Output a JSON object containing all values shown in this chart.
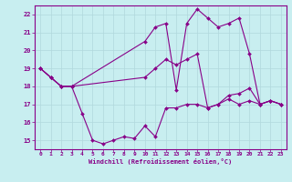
{
  "xlabel": "Windchill (Refroidissement éolien,°C)",
  "bg_color": "#c8eef0",
  "grid_color": "#b0d8dc",
  "line_color": "#880088",
  "spine_color": "#880088",
  "xlim": [
    -0.5,
    23.5
  ],
  "ylim": [
    14.5,
    22.5
  ],
  "xticks": [
    0,
    1,
    2,
    3,
    4,
    5,
    6,
    7,
    8,
    9,
    10,
    11,
    12,
    13,
    14,
    15,
    16,
    17,
    18,
    19,
    20,
    21,
    22,
    23
  ],
  "yticks": [
    15,
    16,
    17,
    18,
    19,
    20,
    21,
    22
  ],
  "line1_x": [
    0,
    1,
    2,
    3,
    10,
    11,
    12,
    13,
    14,
    15,
    16,
    17,
    18,
    19,
    20,
    21,
    22,
    23
  ],
  "line1_y": [
    19.0,
    18.5,
    18.0,
    18.0,
    20.5,
    21.3,
    21.5,
    17.8,
    21.5,
    22.3,
    21.8,
    21.3,
    21.5,
    21.8,
    19.8,
    17.0,
    17.2,
    17.0
  ],
  "line2_x": [
    0,
    1,
    2,
    3,
    4,
    5,
    6,
    7,
    8,
    9,
    10,
    11,
    12,
    13,
    14,
    15,
    16,
    17,
    18,
    19,
    20,
    21,
    22,
    23
  ],
  "line2_y": [
    19.0,
    18.5,
    18.0,
    18.0,
    16.5,
    15.0,
    14.8,
    15.0,
    15.2,
    15.1,
    15.8,
    15.2,
    16.8,
    16.8,
    17.0,
    17.0,
    16.8,
    17.0,
    17.3,
    17.0,
    17.2,
    17.0,
    17.2,
    17.0
  ],
  "line3_x": [
    0,
    1,
    2,
    3,
    10,
    11,
    12,
    13,
    14,
    15,
    16,
    17,
    18,
    19,
    20,
    21,
    22,
    23
  ],
  "line3_y": [
    19.0,
    18.5,
    18.0,
    18.0,
    18.5,
    19.0,
    19.5,
    19.2,
    19.5,
    19.8,
    16.8,
    17.0,
    17.5,
    17.6,
    17.9,
    17.0,
    17.2,
    17.0
  ]
}
